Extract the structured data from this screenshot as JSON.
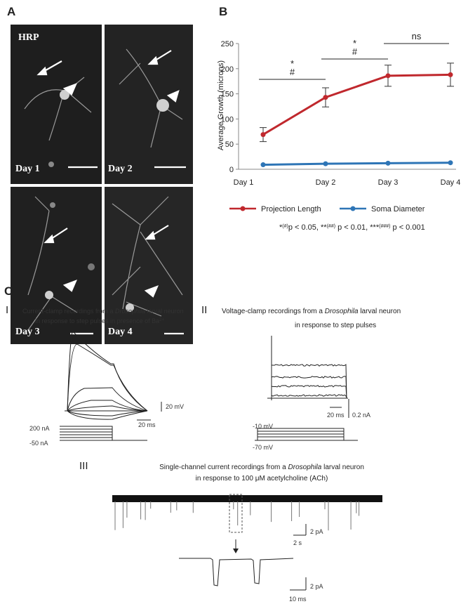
{
  "panel_labels": [
    "A",
    "B",
    "C"
  ],
  "panel_a": {
    "stain": "HRP",
    "days": [
      "Day 1",
      "Day 2",
      "Day 3",
      "Day 4"
    ]
  },
  "chart_data": {
    "type": "line",
    "y_label": "Average Growth (microns)",
    "categories": [
      "Day 1",
      "Day 2",
      "Day 3",
      "Day 4"
    ],
    "series": [
      {
        "name": "Projection Length",
        "color": "#c0282d",
        "values": [
          69,
          143,
          186,
          188
        ],
        "errors": [
          14,
          19,
          21,
          23
        ]
      },
      {
        "name": "Soma Diameter",
        "color": "#2e75b6",
        "values": [
          9,
          11,
          12,
          13
        ]
      }
    ],
    "ylim": [
      0,
      250
    ],
    "yticks": [
      0,
      50,
      100,
      150,
      200,
      250
    ],
    "legend": "bottom",
    "significance": [
      {
        "from": "Day 1",
        "to": "Day 2",
        "marks": [
          "*",
          "#"
        ]
      },
      {
        "from": "Day 2",
        "to": "Day 3",
        "marks": [
          "*",
          "#"
        ]
      },
      {
        "from": "Day 3",
        "to": "Day 4",
        "marks": [
          "ns"
        ]
      }
    ],
    "note": [
      {
        "mark": "*",
        "sup": "(#)",
        "text": "p < 0.05, "
      },
      {
        "mark": "**",
        "sup": "(##)",
        "text": " p < 0.01, "
      },
      {
        "mark": "***",
        "sup": "(###)",
        "text": " p < 0.001"
      }
    ]
  },
  "panel_c": {
    "i": {
      "numeral": "I",
      "title_line1": [
        "Current-clamp recordings from a ",
        "Drosophila",
        " larval neuron"
      ],
      "title_line2": [
        "in response to step pulses in presence of Ba",
        "2+"
      ],
      "scale_v": "20 mV",
      "scale_t": "20 ms",
      "step_high": "200 nA",
      "step_low": "-50 nA"
    },
    "ii": {
      "numeral": "II",
      "title_line1": [
        "Voltage-clamp recordings from a ",
        "Drosophila",
        " larval neuron"
      ],
      "title_line2": "in response to step pulses",
      "scale_t": "20 ms",
      "scale_i": "0.2 nA",
      "step_high": "-10 mV",
      "step_low": "-70 mV"
    },
    "iii": {
      "numeral": "III",
      "title_line1": [
        "Single-channel current recordings from a ",
        "Drosophila",
        " larval neuron"
      ],
      "title_line2": "in response to 100 μM acetylcholine (ACh)",
      "scale_i1": "2 pA",
      "scale_t1": "2 s",
      "scale_i2": "2 pA",
      "scale_t2": "10 ms"
    }
  }
}
